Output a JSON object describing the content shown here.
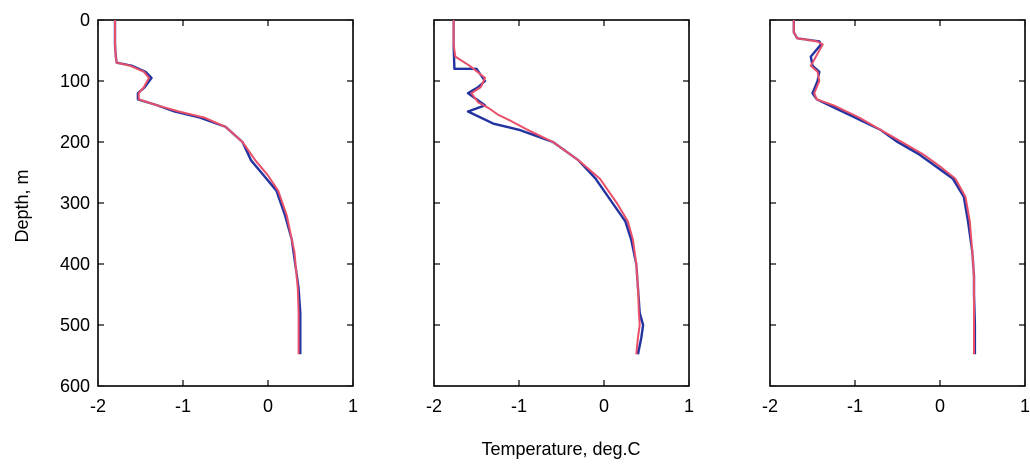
{
  "chart_data": {
    "type": "line",
    "xlabel": "Temperature, deg.C",
    "ylabel": "Depth, m",
    "xlim": [
      -2,
      1
    ],
    "ylim": [
      600,
      0
    ],
    "y_inverted": true,
    "grid": false,
    "x_ticks": [
      "-2",
      "-1",
      "0",
      "1"
    ],
    "y_ticks": [
      "0",
      "100",
      "200",
      "300",
      "400",
      "500",
      "600"
    ],
    "colors": {
      "series_1": "#2233a0",
      "series_2": "#e8506a"
    },
    "panels": [
      {
        "series": [
          {
            "x": [
              -1.8,
              -1.8,
              -1.79,
              -1.78,
              -1.6,
              -1.44,
              -1.37,
              -1.45,
              -1.53,
              -1.53,
              -1.3,
              -1.1,
              -0.8,
              -0.5,
              -0.3,
              -0.2,
              -0.05,
              0.1,
              0.2,
              0.28,
              0.3,
              0.33,
              0.36,
              0.38,
              0.38,
              0.38
            ],
            "y": [
              0,
              40,
              60,
              70,
              75,
              85,
              95,
              110,
              120,
              130,
              140,
              150,
              160,
              175,
              200,
              230,
              255,
              280,
              320,
              360,
              380,
              410,
              440,
              480,
              520,
              548
            ]
          },
          {
            "x": [
              -1.8,
              -1.8,
              -1.79,
              -1.78,
              -1.62,
              -1.46,
              -1.4,
              -1.46,
              -1.52,
              -1.52,
              -1.3,
              -1.05,
              -0.75,
              -0.5,
              -0.3,
              -0.15,
              0.0,
              0.12,
              0.22,
              0.28,
              0.31,
              0.33,
              0.35,
              0.36,
              0.36,
              0.36
            ],
            "y": [
              0,
              40,
              60,
              70,
              75,
              85,
              95,
              110,
              120,
              130,
              140,
              150,
              160,
              175,
              200,
              230,
              255,
              280,
              320,
              360,
              380,
              410,
              440,
              480,
              520,
              548
            ]
          }
        ]
      },
      {
        "series": [
          {
            "x": [
              -1.77,
              -1.77,
              -1.76,
              -1.5,
              -1.4,
              -1.48,
              -1.6,
              -1.45,
              -1.4,
              -1.6,
              -1.3,
              -1.0,
              -0.6,
              -0.3,
              -0.1,
              0.1,
              0.25,
              0.32,
              0.38,
              0.4,
              0.42,
              0.46,
              0.44,
              0.4
            ],
            "y": [
              0,
              40,
              80,
              80,
              100,
              110,
              120,
              135,
              140,
              150,
              170,
              180,
              200,
              230,
              260,
              300,
              330,
              360,
              400,
              440,
              480,
              500,
              520,
              548
            ]
          },
          {
            "x": [
              -1.77,
              -1.77,
              -1.75,
              -1.58,
              -1.4,
              -1.45,
              -1.56,
              -1.48,
              -1.35,
              -1.25,
              -1.1,
              -0.9,
              -0.6,
              -0.3,
              -0.05,
              0.15,
              0.28,
              0.34,
              0.38,
              0.4,
              0.41,
              0.42,
              0.4,
              0.38
            ],
            "y": [
              0,
              40,
              60,
              75,
              95,
              110,
              120,
              135,
              145,
              155,
              165,
              180,
              200,
              230,
              260,
              300,
              330,
              360,
              400,
              440,
              480,
              500,
              520,
              548
            ]
          }
        ]
      },
      {
        "series": [
          {
            "x": [
              -1.72,
              -1.72,
              -1.68,
              -1.42,
              -1.4,
              -1.52,
              -1.5,
              -1.42,
              -1.44,
              -1.5,
              -1.45,
              -1.3,
              -1.0,
              -0.7,
              -0.5,
              -0.25,
              -0.05,
              0.15,
              0.28,
              0.33,
              0.38,
              0.4,
              0.4,
              0.41,
              0.41
            ],
            "y": [
              0,
              20,
              30,
              35,
              40,
              60,
              75,
              85,
              100,
              120,
              130,
              140,
              160,
              180,
              200,
              220,
              240,
              260,
              290,
              330,
              380,
              420,
              450,
              500,
              548
            ]
          },
          {
            "x": [
              -1.72,
              -1.72,
              -1.68,
              -1.45,
              -1.38,
              -1.46,
              -1.52,
              -1.44,
              -1.42,
              -1.48,
              -1.45,
              -1.25,
              -0.95,
              -0.7,
              -0.45,
              -0.2,
              0.0,
              0.18,
              0.3,
              0.35,
              0.38,
              0.4,
              0.4,
              0.4,
              0.4
            ],
            "y": [
              0,
              20,
              30,
              35,
              40,
              60,
              75,
              85,
              100,
              120,
              130,
              140,
              160,
              180,
              200,
              220,
              240,
              260,
              290,
              330,
              380,
              420,
              450,
              500,
              548
            ]
          }
        ]
      }
    ]
  }
}
